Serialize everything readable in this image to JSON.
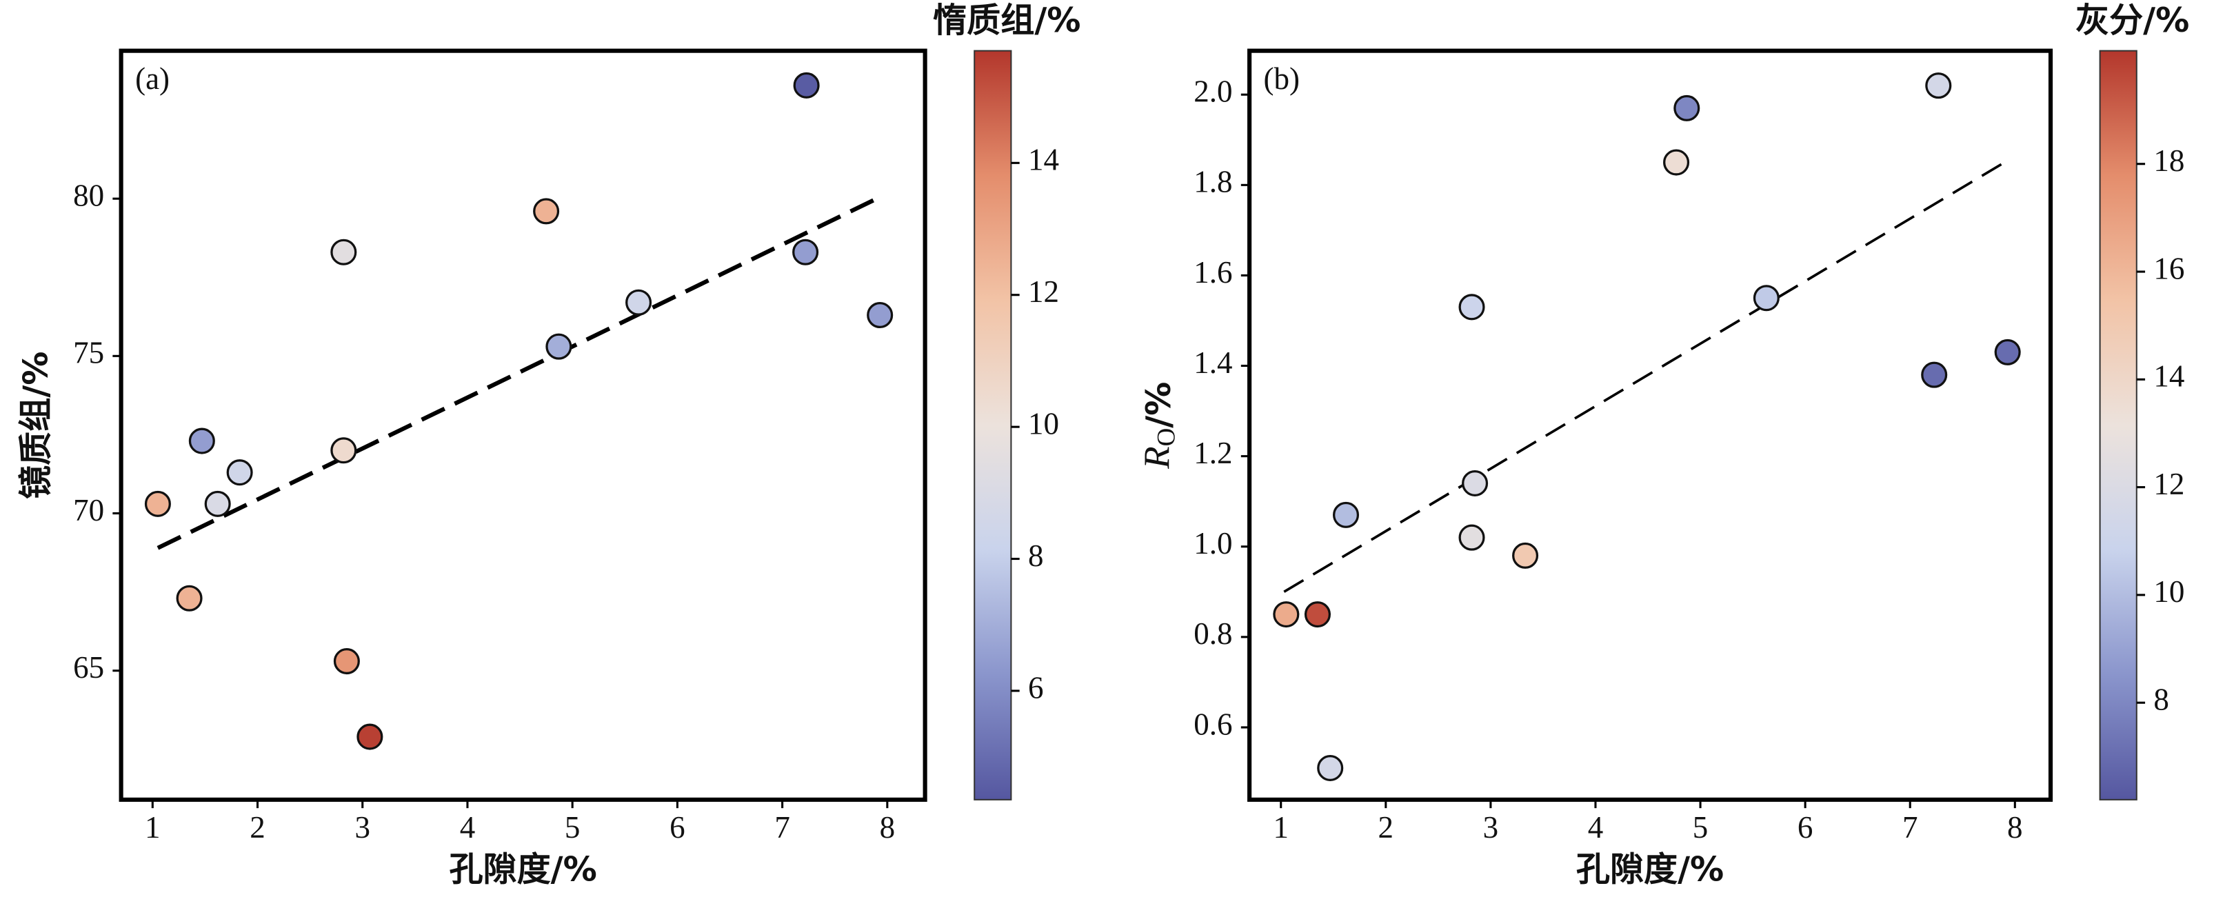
{
  "chart_data": [
    {
      "type": "scatter",
      "panel_label": "(a)",
      "xlabel": "孔隙度/%",
      "ylabel": "镜质组/%",
      "colorbar_label": "惰质组/%",
      "x": [
        7.23,
        4.75,
        2.82,
        7.22,
        5.63,
        7.93,
        4.87,
        1.47,
        2.82,
        1.83,
        1.05,
        1.62,
        1.35,
        2.85,
        3.07
      ],
      "values": [
        83.6,
        79.6,
        78.3,
        78.3,
        76.7,
        76.3,
        75.3,
        72.3,
        72.0,
        71.3,
        70.3,
        70.3,
        67.3,
        65.3,
        62.9
      ],
      "color_values": [
        4.5,
        12.5,
        9.5,
        6.5,
        8.5,
        6.5,
        7,
        6.5,
        10.5,
        8.5,
        12.5,
        9,
        12.5,
        13.5,
        15.5
      ],
      "trendline": {
        "x": [
          1.05,
          7.9
        ],
        "y": [
          68.9,
          80.0
        ]
      },
      "xlim": [
        0.7,
        8.36
      ],
      "xticks": [
        1,
        2,
        3,
        4,
        5,
        6,
        7,
        8
      ],
      "ylim": [
        60.9,
        84.7
      ],
      "yticks": [
        65,
        70,
        75,
        80
      ],
      "clim": [
        4.35,
        15.7
      ],
      "cticks": [
        6,
        8,
        10,
        12,
        14
      ],
      "colormap": [
        "#5557a0",
        "#8a95cc",
        "#c9d3ec",
        "#ece2dc",
        "#f2c3a6",
        "#e48d6c",
        "#b3372c"
      ]
    },
    {
      "type": "scatter",
      "panel_label": "(b)",
      "xlabel": "孔隙度/%",
      "ylabel_parts": [
        "R",
        "O",
        "/%"
      ],
      "colorbar_label": "灰分/%",
      "x": [
        7.27,
        4.87,
        4.77,
        2.82,
        5.63,
        7.23,
        7.93,
        2.85,
        1.62,
        2.82,
        3.33,
        1.05,
        1.35,
        1.47
      ],
      "values": [
        2.02,
        1.97,
        1.85,
        1.53,
        1.55,
        1.38,
        1.43,
        1.14,
        1.07,
        1.02,
        0.98,
        0.85,
        0.85,
        0.51
      ],
      "color_values": [
        11.5,
        8,
        13.5,
        11,
        10.5,
        7,
        7,
        12,
        10,
        12.5,
        15,
        16.5,
        19.5,
        11.5
      ],
      "trendline": {
        "x": [
          1.03,
          7.9
        ],
        "y": [
          0.9,
          1.85
        ]
      },
      "xlim": [
        0.7,
        8.34
      ],
      "xticks": [
        1,
        2,
        3,
        4,
        5,
        6,
        7,
        8
      ],
      "ylim": [
        0.44,
        2.097
      ],
      "yticks": [
        {
          "value": 0.6,
          "label": "0.6"
        },
        {
          "value": 0.8,
          "label": "0.8"
        },
        {
          "value": 1.0,
          "label": "1.0"
        },
        {
          "value": 1.2,
          "label": "1.2"
        },
        {
          "value": 1.4,
          "label": "1.4"
        },
        {
          "value": 1.6,
          "label": "1.6"
        },
        {
          "value": 1.8,
          "label": "1.8"
        },
        {
          "value": 2.0,
          "label": "2.0"
        }
      ],
      "clim": [
        6.2,
        20.1
      ],
      "cticks": [
        8,
        10,
        12,
        14,
        16,
        18
      ],
      "colormap": [
        "#5557a0",
        "#8a95cc",
        "#c9d3ec",
        "#ece2dc",
        "#f2c3a6",
        "#e48d6c",
        "#b3372c"
      ]
    }
  ]
}
